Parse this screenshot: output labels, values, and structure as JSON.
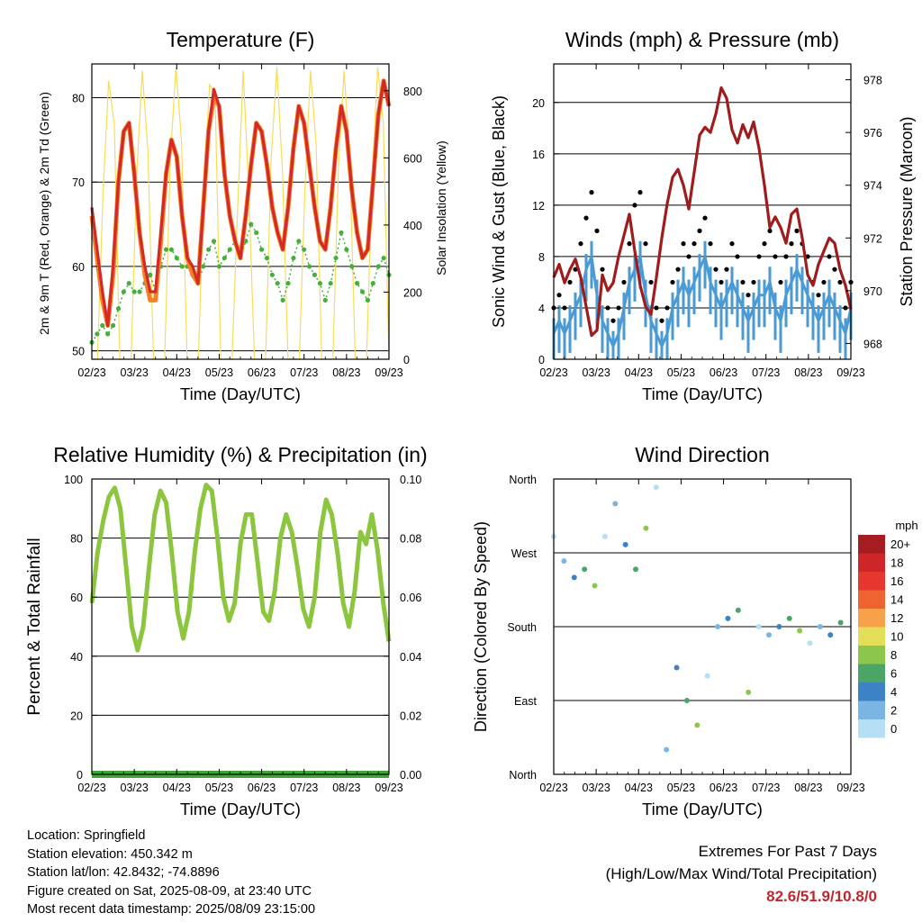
{
  "chart_data": [
    {
      "type": "line",
      "title": "Temperature (F)",
      "xlabel": "Time (Day/UTC)",
      "ylabel": "2m & 9m T (Red, Orange) & 2m Td (Green)",
      "y2label": "Solar Insolation (Yellow)",
      "x_ticks": [
        "02/23",
        "03/23",
        "04/23",
        "05/23",
        "06/23",
        "07/23",
        "08/23",
        "09/23"
      ],
      "ylim": [
        49,
        84
      ],
      "y_ticks": [
        50,
        60,
        70,
        80
      ],
      "y2lim": [
        0,
        880
      ],
      "y2_ticks": [
        0,
        200,
        400,
        600,
        800
      ],
      "grid": true,
      "series_colors": {
        "t2m": "#d42a26",
        "t9m": "#f4802a",
        "td2m": "#44b03b",
        "solar": "#f6dc5a"
      },
      "series": [
        {
          "axis": "y",
          "values": [
            67,
            62,
            57,
            53,
            60,
            70,
            76,
            77,
            71,
            64,
            60,
            57,
            57,
            64,
            71,
            75,
            73,
            66,
            61,
            60,
            58,
            67,
            76,
            81,
            79,
            71,
            66,
            63,
            61,
            66,
            72,
            77,
            76,
            72,
            67,
            64,
            62,
            67,
            74,
            79,
            77,
            72,
            67,
            63,
            62,
            67,
            74,
            79,
            76,
            69,
            64,
            61,
            62,
            70,
            78,
            82,
            79
          ]
        },
        {
          "axis": "y",
          "values": [
            66,
            61,
            56,
            53,
            59,
            70,
            76,
            77,
            71,
            64,
            59,
            56,
            56,
            63,
            71,
            75,
            73,
            66,
            61,
            59,
            58,
            67,
            76,
            80,
            79,
            71,
            66,
            63,
            61,
            66,
            72,
            77,
            76,
            72,
            67,
            64,
            62,
            67,
            74,
            79,
            77,
            72,
            67,
            63,
            62,
            67,
            74,
            79,
            76,
            69,
            64,
            61,
            62,
            70,
            78,
            82,
            79
          ]
        },
        {
          "axis": "y",
          "values": [
            51,
            52,
            53,
            52,
            53,
            55,
            57,
            58,
            57,
            57,
            58,
            59,
            57,
            60,
            62,
            62,
            61,
            60,
            60,
            59,
            58,
            60,
            62,
            63,
            60,
            61,
            62,
            63,
            61,
            63,
            65,
            64,
            62,
            61,
            59,
            58,
            56,
            58,
            61,
            63,
            62,
            60,
            59,
            58,
            56,
            58,
            61,
            64,
            62,
            60,
            58,
            57,
            56,
            58,
            60,
            61,
            59
          ]
        },
        {
          "axis": "y2",
          "values": [
            0,
            0,
            500,
            830,
            700,
            0,
            0,
            0,
            550,
            860,
            620,
            0,
            0,
            0,
            600,
            870,
            650,
            0,
            0,
            0,
            520,
            820,
            780,
            0,
            0,
            0,
            450,
            860,
            500,
            0,
            0,
            0,
            600,
            870,
            560,
            0,
            0,
            0,
            500,
            860,
            640,
            0,
            0,
            0,
            580,
            860,
            600,
            0,
            0,
            0,
            540,
            870,
            700,
            0
          ]
        }
      ]
    },
    {
      "type": "line",
      "title": "Winds (mph) & Pressure (mb)",
      "xlabel": "Time (Day/UTC)",
      "ylabel": "Sonic Wind & Gust (Blue, Black)",
      "y2label": "Station Pressure (Maroon)",
      "x_ticks": [
        "02/23",
        "03/23",
        "04/23",
        "05/23",
        "06/23",
        "07/23",
        "08/23",
        "09/23"
      ],
      "ylim": [
        0,
        23
      ],
      "y_ticks": [
        0,
        4,
        8,
        12,
        16,
        20
      ],
      "y2lim": [
        967.4,
        978.6
      ],
      "y2_ticks": [
        968,
        970,
        972,
        974,
        976,
        978
      ],
      "grid": true,
      "series_colors": {
        "wind": "#4a9ad4",
        "gust": "#000000",
        "pressure": "#a01c1c"
      },
      "series": [
        {
          "axis": "y",
          "values": [
            2,
            3,
            2,
            3,
            4,
            5,
            7,
            8,
            5,
            3,
            2,
            1,
            2,
            4,
            6,
            7,
            8,
            5,
            3,
            2,
            1,
            2,
            4,
            5,
            6,
            5,
            6,
            7,
            8,
            6,
            5,
            4,
            5,
            6,
            5,
            4,
            3,
            4,
            5,
            5,
            6,
            4,
            3,
            5,
            6,
            7,
            6,
            5,
            4,
            3,
            4,
            5,
            4,
            3,
            2,
            4
          ]
        },
        {
          "axis": "y",
          "values": [
            4,
            5,
            4,
            6,
            7,
            9,
            11,
            13,
            10,
            7,
            4,
            3,
            4,
            6,
            9,
            12,
            13,
            9,
            6,
            4,
            3,
            4,
            6,
            7,
            9,
            8,
            9,
            10,
            11,
            9,
            7,
            6,
            7,
            9,
            8,
            6,
            5,
            6,
            8,
            9,
            10,
            8,
            6,
            8,
            9,
            10,
            9,
            8,
            6,
            5,
            6,
            8,
            7,
            6,
            4,
            6
          ]
        },
        {
          "axis": "y2",
          "values": [
            970.5,
            971.0,
            970.3,
            970.8,
            971.2,
            970.5,
            969.4,
            968.3,
            968.5,
            970.6,
            970.0,
            970.3,
            971.3,
            972.1,
            972.9,
            971.5,
            970.2,
            969.4,
            969.1,
            970.5,
            972.0,
            973.3,
            974.3,
            974.6,
            974.0,
            973.1,
            974.5,
            975.9,
            976.2,
            976.0,
            976.7,
            977.7,
            977.3,
            976.1,
            975.6,
            976.3,
            975.8,
            976.4,
            975.4,
            974.0,
            972.4,
            972.8,
            972.4,
            971.8,
            972.9,
            973.1,
            972.0,
            970.6,
            970.2,
            971.0,
            971.5,
            972.0,
            971.8,
            970.8,
            970.2,
            969.3
          ]
        }
      ]
    },
    {
      "type": "line",
      "title": "Relative Humidity (%) & Precipitation (in)",
      "xlabel": "Time (Day/UTC)",
      "ylabel": "Percent & Total Rainfall",
      "x_ticks": [
        "02/23",
        "03/23",
        "04/23",
        "05/23",
        "06/23",
        "07/23",
        "08/23",
        "09/23"
      ],
      "ylim": [
        0,
        100
      ],
      "y_ticks": [
        0,
        20,
        40,
        60,
        80,
        100
      ],
      "y2lim": [
        0,
        0.1
      ],
      "y2_ticks": [
        "0.00",
        "0.02",
        "0.04",
        "0.06",
        "0.08",
        "0.10"
      ],
      "grid": true,
      "series_colors": {
        "rh": "#8cc63f",
        "precip": "#3fa535"
      },
      "series": [
        {
          "axis": "y",
          "values": [
            58,
            75,
            86,
            94,
            97,
            90,
            70,
            50,
            42,
            50,
            70,
            88,
            96,
            92,
            75,
            55,
            46,
            55,
            75,
            90,
            98,
            96,
            80,
            60,
            52,
            58,
            78,
            88,
            88,
            72,
            55,
            52,
            62,
            80,
            88,
            82,
            70,
            56,
            50,
            60,
            82,
            93,
            88,
            75,
            58,
            50,
            62,
            82,
            78,
            88,
            76,
            58,
            45
          ]
        },
        {
          "axis": "y2",
          "values": [
            0,
            0
          ]
        }
      ]
    },
    {
      "type": "scatter",
      "title": "Wind Direction",
      "xlabel": "Time (Day/UTC)",
      "ylabel": "Direction (Colored By Speed)",
      "x_ticks": [
        "02/23",
        "03/23",
        "04/23",
        "05/23",
        "06/23",
        "07/23",
        "08/23",
        "09/23"
      ],
      "y_ticks": [
        "North",
        "East",
        "South",
        "West",
        "North"
      ],
      "ylim": [
        0,
        360
      ],
      "grid": true,
      "legend": {
        "title": "mph",
        "placement": "right",
        "labels": [
          "20+",
          "18",
          "16",
          "14",
          "12",
          "10",
          "8",
          "6",
          "4",
          "2",
          "0"
        ],
        "colors": [
          "#a51d21",
          "#cf2428",
          "#e6362d",
          "#ef6330",
          "#f7a14b",
          "#e4df58",
          "#8cc64d",
          "#4aa567",
          "#3d82c4",
          "#7bb5e4",
          "#b6def5"
        ]
      },
      "series": [
        {
          "x": [
            0,
            2,
            4,
            6,
            8,
            10,
            12,
            14,
            16,
            18,
            20,
            22,
            24,
            26,
            28,
            30,
            32,
            34,
            36,
            38,
            40,
            42,
            44,
            46,
            48,
            50,
            52,
            54,
            56
          ],
          "values": [
            290,
            260,
            240,
            250,
            230,
            290,
            330,
            280,
            250,
            300,
            350,
            30,
            130,
            90,
            60,
            120,
            180,
            190,
            200,
            100,
            180,
            170,
            180,
            190,
            175,
            160,
            180,
            170,
            185
          ]
        }
      ]
    }
  ],
  "info": {
    "location": "Location: Springfield",
    "elevation": "Station elevation: 450.342 m",
    "latlon": "Station lat/lon: 42.8432; -74.8896",
    "created": "Figure created on Sat, 2025-08-09, at 23:40 UTC",
    "recent": "Most recent data timestamp: 2025/08/09 23:15:00"
  },
  "extremes": {
    "title": "Extremes For Past 7 Days",
    "subtitle": "(High/Low/Max Wind/Total Precipitation)",
    "values": "82.6/51.9/10.8/0"
  }
}
